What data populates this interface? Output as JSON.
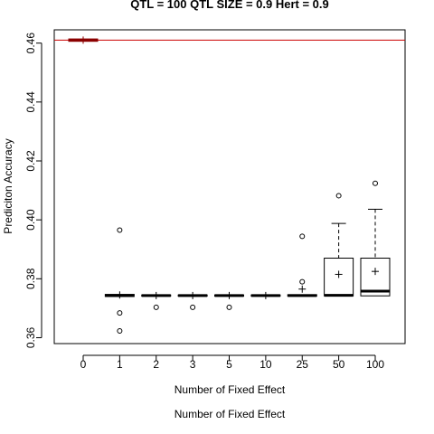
{
  "chart_data": {
    "type": "box",
    "title": "QTL = 100 QTL SIZE = 0.9 Hert = 0.9",
    "xlabel": "Number of Fixed Effect",
    "xlabel_repeat": "Number of Fixed Effect",
    "ylabel": "Prediciton Accuracy",
    "ylim": [
      0.358,
      0.4645
    ],
    "yticks": [
      "0.36",
      "0.38",
      "0.40",
      "0.42",
      "0.44",
      "0.46"
    ],
    "reference_line": {
      "y": 0.461,
      "color": "#cc0000"
    },
    "grid": false,
    "categories": [
      "0",
      "1",
      "2",
      "3",
      "5",
      "10",
      "25",
      "50",
      "100"
    ],
    "boxes": [
      {
        "q1": 0.4606,
        "median": 0.461,
        "q3": 0.4614,
        "whisker_low": 0.4604,
        "whisker_high": 0.4616,
        "mean": 0.461,
        "outliers": [],
        "color": "#8b0000"
      },
      {
        "q1": 0.374,
        "median": 0.3743,
        "q3": 0.3747,
        "whisker_low": 0.3738,
        "whisker_high": 0.375,
        "mean": 0.3745,
        "outliers": [
          0.3965,
          0.3684,
          0.3623
        ],
        "color": "#000000"
      },
      {
        "q1": 0.3741,
        "median": 0.3743,
        "q3": 0.3745,
        "whisker_low": 0.374,
        "whisker_high": 0.3746,
        "mean": 0.3743,
        "outliers": [
          0.3703
        ],
        "color": "#000000"
      },
      {
        "q1": 0.3741,
        "median": 0.3743,
        "q3": 0.3745,
        "whisker_low": 0.374,
        "whisker_high": 0.3746,
        "mean": 0.3743,
        "outliers": [
          0.3703
        ],
        "color": "#000000"
      },
      {
        "q1": 0.3741,
        "median": 0.3743,
        "q3": 0.3745,
        "whisker_low": 0.374,
        "whisker_high": 0.3746,
        "mean": 0.3743,
        "outliers": [
          0.3703
        ],
        "color": "#000000"
      },
      {
        "q1": 0.3741,
        "median": 0.3743,
        "q3": 0.3745,
        "whisker_low": 0.374,
        "whisker_high": 0.3746,
        "mean": 0.3743,
        "outliers": [],
        "color": "#000000"
      },
      {
        "q1": 0.3741,
        "median": 0.3743,
        "q3": 0.3746,
        "whisker_low": 0.374,
        "whisker_high": 0.3747,
        "mean": 0.3765,
        "outliers": [
          0.3944,
          0.379
        ],
        "color": "#000000"
      },
      {
        "q1": 0.3742,
        "median": 0.3744,
        "q3": 0.387,
        "whisker_low": 0.374,
        "whisker_high": 0.3988,
        "mean": 0.3815,
        "outliers": [
          0.4082
        ],
        "color": "#000000"
      },
      {
        "q1": 0.3742,
        "median": 0.3758,
        "q3": 0.387,
        "whisker_low": 0.374,
        "whisker_high": 0.4036,
        "mean": 0.3825,
        "outliers": [
          0.4124
        ],
        "color": "#000000"
      }
    ]
  }
}
